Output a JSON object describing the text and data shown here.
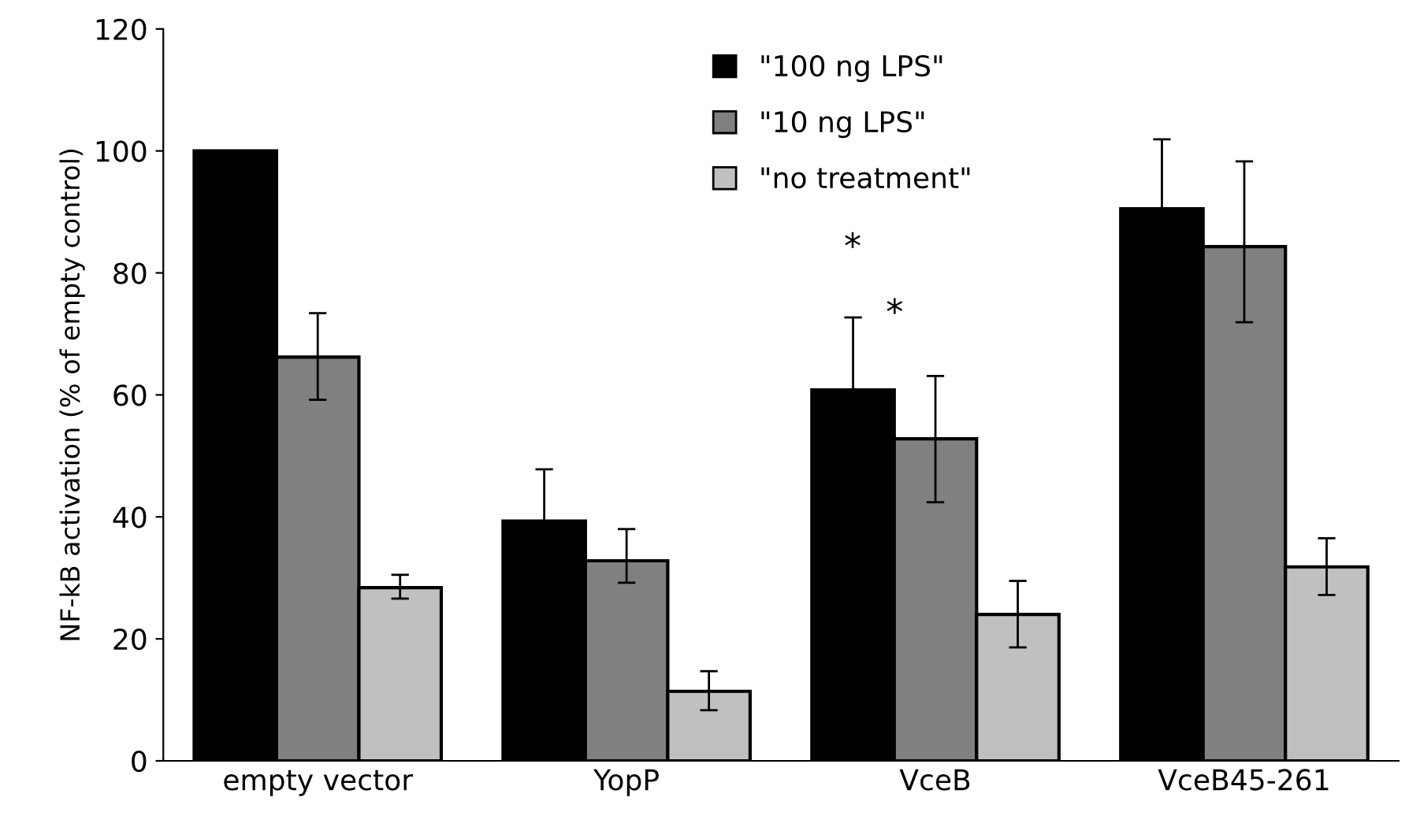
{
  "chart_data": {
    "type": "bar",
    "ylabel": "NF-kB activation (% of empty control)",
    "categories": [
      "empty vector",
      "YopP",
      "VceB",
      "VceB45-261"
    ],
    "ylim": [
      0,
      120
    ],
    "yticks": [
      0,
      20,
      40,
      60,
      80,
      100,
      120
    ],
    "grid": false,
    "legend": "top",
    "series": [
      {
        "name": "\"100 ng LPS\"",
        "color": "#000000",
        "values": [
          100,
          39.3,
          60.8,
          90.5
        ],
        "errors": [
          null,
          [
            39.3,
            47.8
          ],
          [
            60.8,
            72.7
          ],
          [
            90.5,
            101.9
          ]
        ]
      },
      {
        "name": "\"10 ng LPS\"",
        "color": "#808080",
        "values": [
          66.2,
          32.8,
          52.8,
          84.3
        ],
        "errors": [
          [
            59.2,
            73.4
          ],
          [
            29.2,
            38.0
          ],
          [
            42.4,
            63.1
          ],
          [
            71.9,
            98.3
          ]
        ]
      },
      {
        "name": "\"no treatment\"",
        "color": "#c0c0c0",
        "values": [
          28.4,
          11.4,
          24.0,
          31.8
        ],
        "errors": [
          [
            26.6,
            30.5
          ],
          [
            8.3,
            14.7
          ],
          [
            18.6,
            29.5
          ],
          [
            27.2,
            36.5
          ]
        ]
      }
    ],
    "annotations": [
      "*",
      "*"
    ]
  }
}
